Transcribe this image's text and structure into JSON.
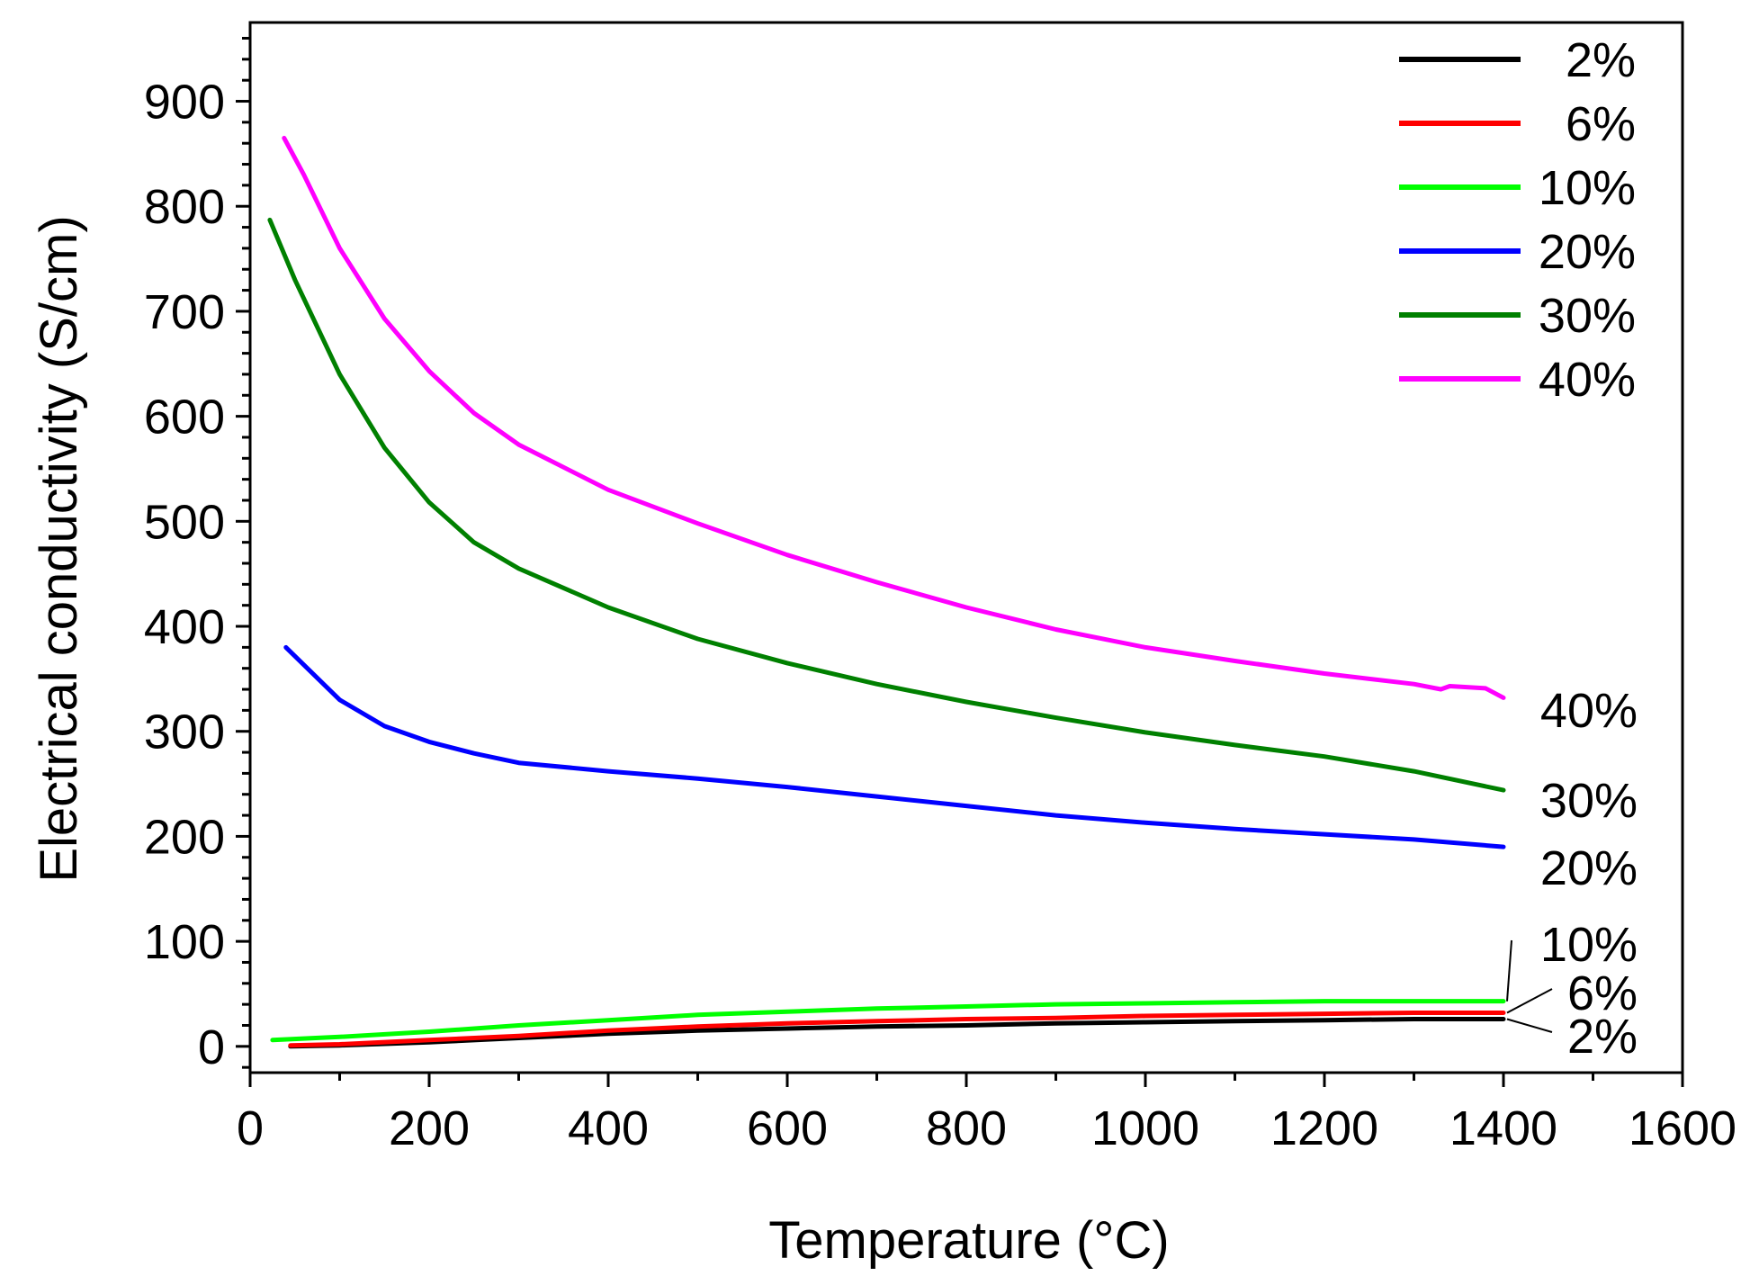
{
  "chart_data": {
    "type": "line",
    "title": "",
    "xlabel": "Temperature (°C)",
    "ylabel": "Electrical conductivity (S/cm)",
    "xlim": [
      0,
      1600
    ],
    "ylim": [
      -25,
      975
    ],
    "xticks": [
      0,
      200,
      400,
      600,
      800,
      1000,
      1200,
      1400,
      1600
    ],
    "yticks": [
      0,
      100,
      200,
      300,
      400,
      500,
      600,
      700,
      800,
      900
    ],
    "grid": false,
    "legend_position": "top-right",
    "series": [
      {
        "name": "2%",
        "color": "#000000",
        "end_label": "2%",
        "points": [
          [
            45,
            0
          ],
          [
            100,
            1
          ],
          [
            200,
            4
          ],
          [
            300,
            8
          ],
          [
            400,
            12
          ],
          [
            500,
            15
          ],
          [
            600,
            17
          ],
          [
            700,
            19
          ],
          [
            800,
            20
          ],
          [
            900,
            22
          ],
          [
            1000,
            23
          ],
          [
            1100,
            24
          ],
          [
            1200,
            25
          ],
          [
            1300,
            26
          ],
          [
            1400,
            26
          ]
        ]
      },
      {
        "name": "6%",
        "color": "#ff0000",
        "end_label": "6%",
        "points": [
          [
            45,
            1
          ],
          [
            100,
            2
          ],
          [
            200,
            6
          ],
          [
            300,
            10
          ],
          [
            400,
            15
          ],
          [
            500,
            19
          ],
          [
            600,
            22
          ],
          [
            700,
            24
          ],
          [
            800,
            26
          ],
          [
            900,
            27
          ],
          [
            1000,
            29
          ],
          [
            1100,
            30
          ],
          [
            1200,
            31
          ],
          [
            1300,
            32
          ],
          [
            1400,
            32
          ]
        ]
      },
      {
        "name": "10%",
        "color": "#00ff00",
        "end_label": "10%",
        "points": [
          [
            25,
            6
          ],
          [
            100,
            9
          ],
          [
            200,
            14
          ],
          [
            300,
            20
          ],
          [
            400,
            25
          ],
          [
            500,
            30
          ],
          [
            600,
            33
          ],
          [
            700,
            36
          ],
          [
            800,
            38
          ],
          [
            900,
            40
          ],
          [
            1000,
            41
          ],
          [
            1100,
            42
          ],
          [
            1200,
            43
          ],
          [
            1300,
            43
          ],
          [
            1400,
            43
          ]
        ]
      },
      {
        "name": "20%",
        "color": "#0000ff",
        "end_label": "20%",
        "points": [
          [
            40,
            380
          ],
          [
            100,
            330
          ],
          [
            150,
            305
          ],
          [
            200,
            290
          ],
          [
            250,
            279
          ],
          [
            300,
            270
          ],
          [
            400,
            262
          ],
          [
            500,
            255
          ],
          [
            600,
            247
          ],
          [
            700,
            238
          ],
          [
            800,
            229
          ],
          [
            900,
            220
          ],
          [
            1000,
            213
          ],
          [
            1100,
            207
          ],
          [
            1200,
            202
          ],
          [
            1300,
            197
          ],
          [
            1400,
            190
          ]
        ]
      },
      {
        "name": "30%",
        "color": "#008000",
        "end_label": "30%",
        "points": [
          [
            22,
            787
          ],
          [
            50,
            730
          ],
          [
            100,
            640
          ],
          [
            150,
            570
          ],
          [
            200,
            518
          ],
          [
            250,
            480
          ],
          [
            300,
            455
          ],
          [
            400,
            418
          ],
          [
            500,
            388
          ],
          [
            600,
            365
          ],
          [
            700,
            345
          ],
          [
            800,
            328
          ],
          [
            900,
            313
          ],
          [
            1000,
            299
          ],
          [
            1100,
            287
          ],
          [
            1200,
            276
          ],
          [
            1300,
            262
          ],
          [
            1400,
            244
          ]
        ]
      },
      {
        "name": "40%",
        "color": "#ff00ff",
        "end_label": "40%",
        "points": [
          [
            38,
            865
          ],
          [
            60,
            830
          ],
          [
            100,
            760
          ],
          [
            150,
            693
          ],
          [
            200,
            643
          ],
          [
            250,
            603
          ],
          [
            300,
            573
          ],
          [
            400,
            530
          ],
          [
            500,
            498
          ],
          [
            600,
            468
          ],
          [
            700,
            442
          ],
          [
            800,
            418
          ],
          [
            900,
            397
          ],
          [
            1000,
            380
          ],
          [
            1100,
            367
          ],
          [
            1200,
            355
          ],
          [
            1300,
            345
          ],
          [
            1330,
            340
          ],
          [
            1340,
            343
          ],
          [
            1380,
            341
          ],
          [
            1400,
            332
          ]
        ]
      }
    ]
  }
}
